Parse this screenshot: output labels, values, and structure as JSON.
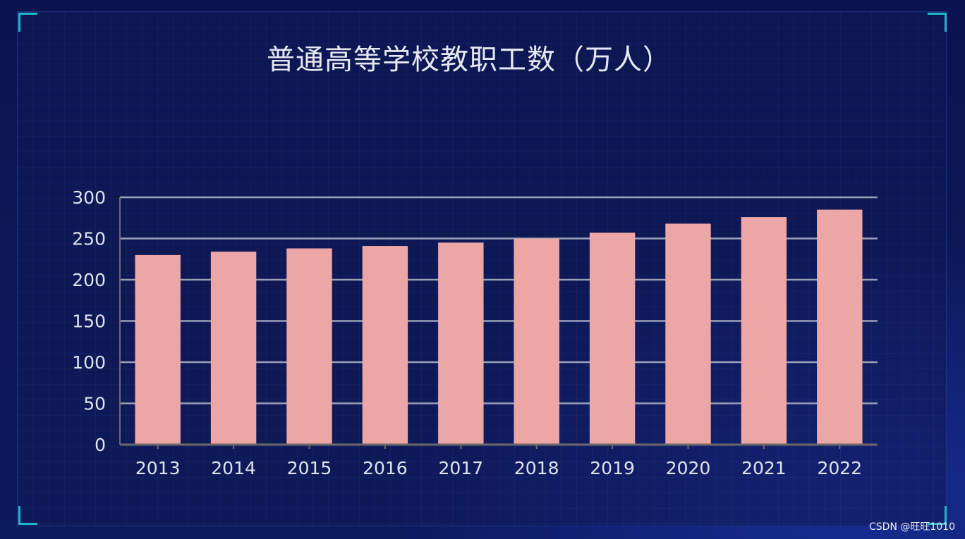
{
  "chart_data": {
    "type": "bar",
    "title": "普通高等学校教职工数（万人）",
    "xlabel": "",
    "ylabel": "",
    "categories": [
      "2013",
      "2014",
      "2015",
      "2016",
      "2017",
      "2018",
      "2019",
      "2020",
      "2021",
      "2022"
    ],
    "values": [
      230,
      234,
      238,
      241,
      245,
      250,
      257,
      268,
      276,
      285
    ],
    "ylim": [
      0,
      300
    ],
    "yticks": [
      0,
      50,
      100,
      150,
      200,
      250,
      300
    ],
    "grid": true,
    "legend": "none"
  },
  "colors": {
    "bar": "#eda6a6",
    "gridline": "#9aa0b8",
    "axis": "#6f6a6a",
    "tick_text": "#dfe3f0",
    "title_text": "#e6e9f4",
    "corner_accent": "#1fb6c9",
    "background": "#0c1856"
  },
  "watermark": "CSDN @旺旺1010"
}
